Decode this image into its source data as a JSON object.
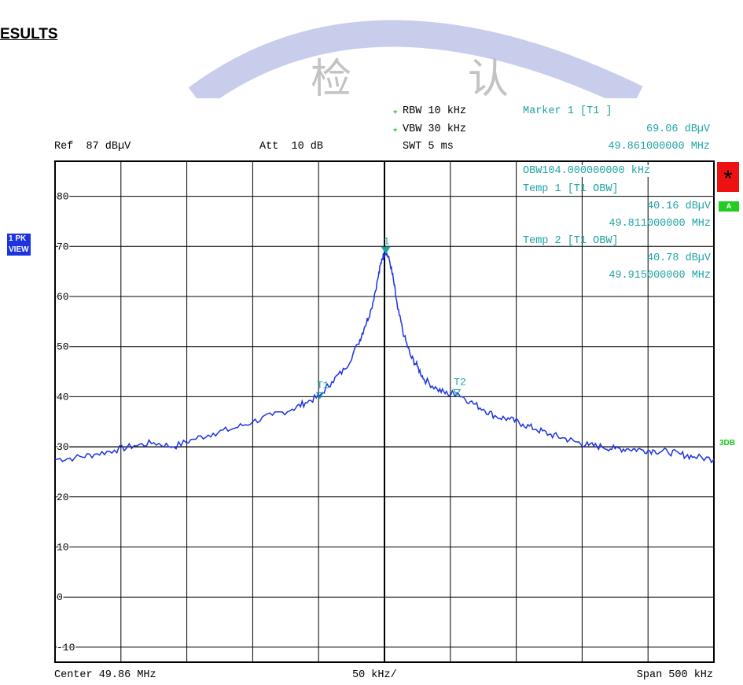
{
  "heading": "ESULTS",
  "watermark": [
    "检",
    "认"
  ],
  "settings": {
    "rbw_star": "*",
    "rbw": "RBW 10 kHz",
    "vbw_star": "*",
    "vbw": "VBW 30 kHz",
    "swt": "SWT 5 ms",
    "ref": "Ref  87 dBµV",
    "att": "Att  10 dB"
  },
  "marker": {
    "title": "Marker 1 [T1 ]",
    "level": "69.06 dBµV",
    "freq": "49.861000000 MHz"
  },
  "obw_readout": {
    "obw": "OBW104.000000000 kHz",
    "temp1_title": "Temp 1 [T1 OBW]",
    "temp1_level": "40.16 dBµV",
    "temp1_freq": "49.811000000 MHz",
    "temp2_title": "Temp 2 [T1 OBW]",
    "temp2_level": "40.78 dBµV",
    "temp2_freq": "49.915000000 MHz"
  },
  "side": {
    "trace_line1": "1 PK",
    "trace_line2": "VIEW",
    "status_star": "*",
    "status_a": "A",
    "threedb": "3DB"
  },
  "footer": {
    "center": "Center 49.86 MHz",
    "per_div": "50 kHz/",
    "span": "Span 500 kHz"
  },
  "colors": {
    "trace": "#1c33e0",
    "annotation": "#1fa3a3",
    "status_red": "#ee1111",
    "status_green": "#22cc22"
  },
  "chart_data": {
    "type": "line",
    "xlim": [
      49.61,
      50.11
    ],
    "ylim": [
      -13,
      87
    ],
    "y_ticks": [
      80,
      70,
      60,
      50,
      40,
      30,
      20,
      10,
      0,
      -10
    ],
    "x_divisions": 10,
    "grid": true,
    "series": [
      {
        "x": [
          49.61,
          49.625,
          49.64,
          49.655,
          49.67,
          49.685,
          49.7,
          49.715,
          49.73,
          49.745,
          49.76,
          49.775,
          49.79,
          49.8,
          49.811,
          49.82,
          49.83,
          49.84,
          49.845,
          49.85,
          49.855,
          49.858,
          49.861,
          49.864,
          49.867,
          49.87,
          49.875,
          49.88,
          49.885,
          49.89,
          49.9,
          49.908,
          49.915,
          49.925,
          49.935,
          49.945,
          49.955,
          49.965,
          49.975,
          49.985,
          49.995,
          50.005,
          50.015,
          50.025,
          50.035,
          50.045,
          50.055,
          50.065,
          50.075,
          50.085,
          50.095,
          50.11
        ],
        "y": [
          27.5,
          27.8,
          28.5,
          29.3,
          30.2,
          30.8,
          30.0,
          31.5,
          32.7,
          33.6,
          35.0,
          36.3,
          37.5,
          38.8,
          40.16,
          43.0,
          45.5,
          50.5,
          54.0,
          57.5,
          63.5,
          67.5,
          69.06,
          67.0,
          63.0,
          57.5,
          52.0,
          48.0,
          46.0,
          43.5,
          41.5,
          40.5,
          40.78,
          39.0,
          37.5,
          36.0,
          35.5,
          34.5,
          33.5,
          32.5,
          31.8,
          31.0,
          30.3,
          30.0,
          29.6,
          29.6,
          29.4,
          29.2,
          29.0,
          28.5,
          28.0,
          27.5
        ]
      }
    ],
    "markers": [
      {
        "label": "1",
        "x": 49.861,
        "y": 69.06
      },
      {
        "label": "T1",
        "x": 49.811,
        "y": 40.16
      },
      {
        "label": "T2",
        "x": 49.915,
        "y": 40.78
      }
    ],
    "threshold": {
      "label": "3DB",
      "y": 30
    }
  }
}
